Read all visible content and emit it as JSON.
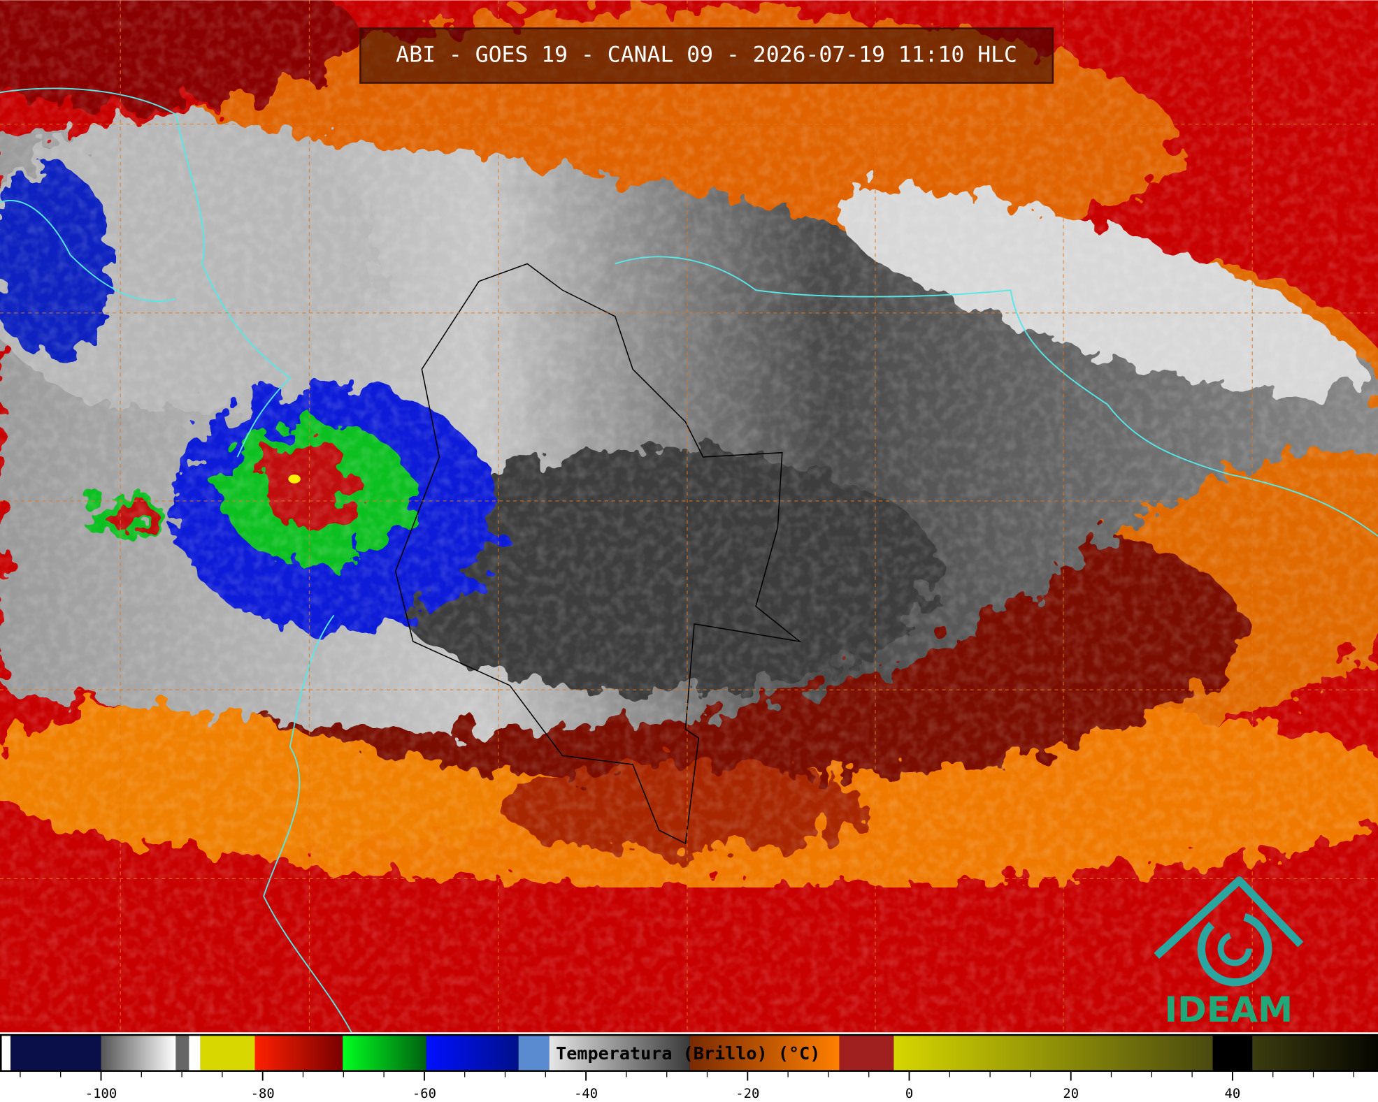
{
  "title": "ABI - GOES 19 - CANAL 09 - 2026-07-19 11:10 HLC",
  "colorbar": {
    "label": "Temperatura (Brillo) (°C)",
    "lim": [
      -112.5,
      58
    ],
    "ticks": [
      -100,
      -80,
      -60,
      -40,
      -20,
      0,
      20,
      40
    ],
    "minor_ticks": [
      -110,
      -105,
      -95,
      -90,
      -85,
      -75,
      -70,
      -65,
      -55,
      -50,
      -45,
      -35,
      -30,
      -25,
      -15,
      -10,
      -5,
      5,
      10,
      15,
      25,
      30,
      35,
      45,
      50,
      55
    ]
  },
  "logo": "IDEAM"
}
